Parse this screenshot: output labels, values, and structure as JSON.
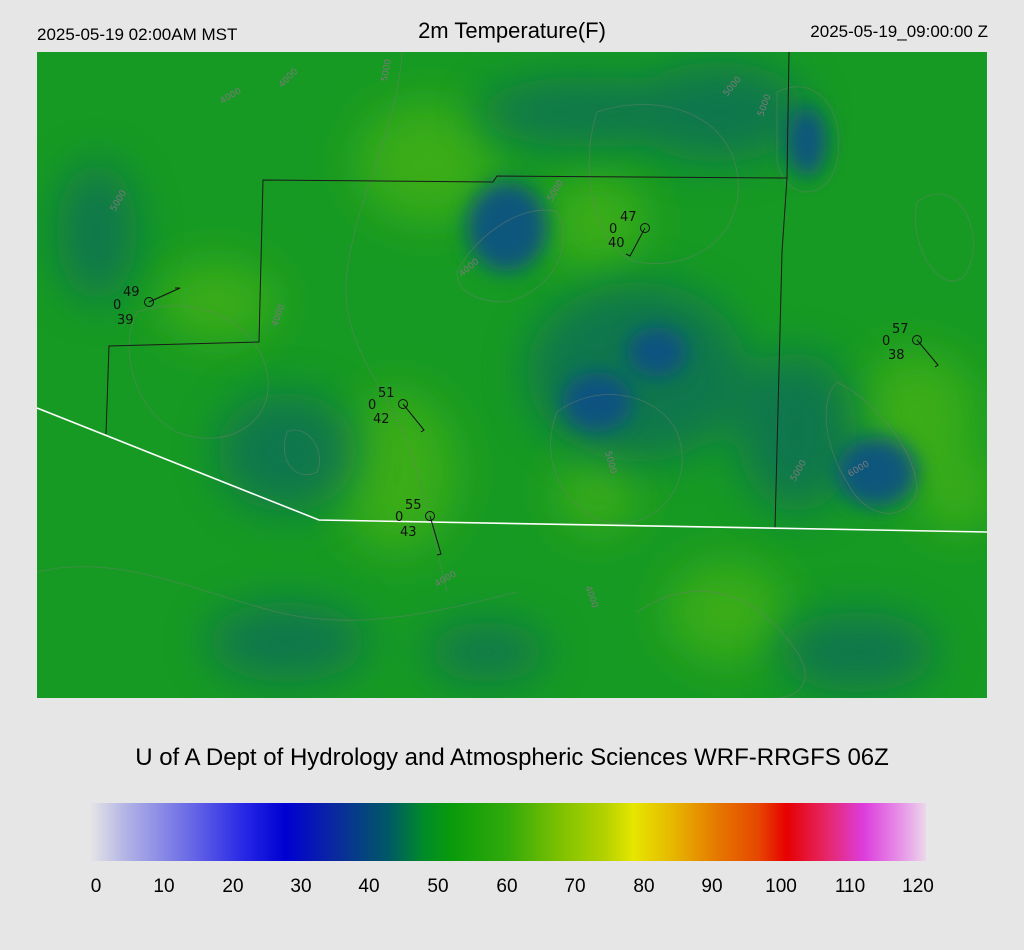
{
  "header": {
    "local_time": "2025-05-19 02:00AM MST",
    "title": "2m Temperature(F)",
    "valid_time": "2025-05-19_09:00:00 Z"
  },
  "credit": "U of A Dept of Hydrology and Atmospheric Sciences WRF-RRGFS 06Z",
  "colorbar": {
    "ticks": [
      "0",
      "10",
      "20",
      "30",
      "40",
      "50",
      "60",
      "70",
      "80",
      "90",
      "100",
      "110",
      "120"
    ],
    "stops": [
      {
        "value": 0,
        "color": "#e6e6e6"
      },
      {
        "value": 5,
        "color": "#b4b4e6"
      },
      {
        "value": 15,
        "color": "#6464e6"
      },
      {
        "value": 22,
        "color": "#2828e6"
      },
      {
        "value": 28,
        "color": "#0000d2"
      },
      {
        "value": 35,
        "color": "#0a28a0"
      },
      {
        "value": 43,
        "color": "#005a64"
      },
      {
        "value": 48,
        "color": "#008c28"
      },
      {
        "value": 52,
        "color": "#0a9b0a"
      },
      {
        "value": 60,
        "color": "#32aa0a"
      },
      {
        "value": 68,
        "color": "#82c300"
      },
      {
        "value": 74,
        "color": "#b4d200"
      },
      {
        "value": 78,
        "color": "#e6e600"
      },
      {
        "value": 84,
        "color": "#e6b400"
      },
      {
        "value": 90,
        "color": "#e67800"
      },
      {
        "value": 96,
        "color": "#e64600"
      },
      {
        "value": 100,
        "color": "#e60000"
      },
      {
        "value": 106,
        "color": "#e6286e"
      },
      {
        "value": 111,
        "color": "#dc3cdc"
      },
      {
        "value": 116,
        "color": "#e68ce6"
      },
      {
        "value": 120,
        "color": "#ebd7eb"
      }
    ]
  },
  "map": {
    "field_colors": {
      "base": "#179a23",
      "warm": "#3fb012",
      "cool": "#0f6e56",
      "cold": "#0b4f86"
    },
    "stations": [
      {
        "temp": "49",
        "calm": "0",
        "dewpoint": "39"
      },
      {
        "temp": "47",
        "calm": "0",
        "dewpoint": "40"
      },
      {
        "temp": "51",
        "calm": "0",
        "dewpoint": "42"
      },
      {
        "temp": "55",
        "calm": "0",
        "dewpoint": "43"
      },
      {
        "temp": "57",
        "calm": "0",
        "dewpoint": "38"
      }
    ],
    "contour_labels": [
      "5000",
      "4000",
      "5000",
      "4000",
      "5000",
      "4000",
      "5000",
      "5000",
      "6000",
      "4000",
      "5000",
      "4000",
      "5000",
      "4000"
    ]
  }
}
